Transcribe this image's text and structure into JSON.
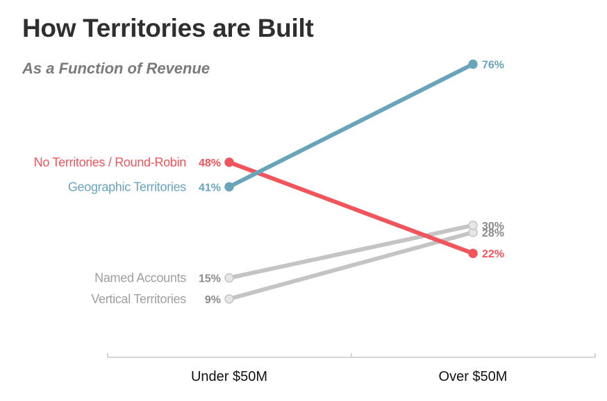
{
  "chart_data": {
    "type": "line",
    "title": "How Territories are Built",
    "subtitle": "As a Function of Revenue",
    "categories": [
      "Under $50M",
      "Over $50M"
    ],
    "ylim": [
      0,
      80
    ],
    "grid": false,
    "legend": "none",
    "series": [
      {
        "name": "No Territories / Round-Robin",
        "values": [
          48,
          22
        ],
        "labels": [
          "48%",
          "22%"
        ],
        "color": "#f2545b"
      },
      {
        "name": "Geographic Territories",
        "values": [
          41,
          76
        ],
        "labels": [
          "41%",
          "76%"
        ],
        "color": "#6aa4bb"
      },
      {
        "name": "Named Accounts",
        "values": [
          15,
          30
        ],
        "labels": [
          "15%",
          "30%"
        ],
        "color": "#9e9e9e"
      },
      {
        "name": "Vertical Territories",
        "values": [
          9,
          28
        ],
        "labels": [
          "9%",
          "28%"
        ],
        "color": "#9e9e9e"
      }
    ]
  }
}
